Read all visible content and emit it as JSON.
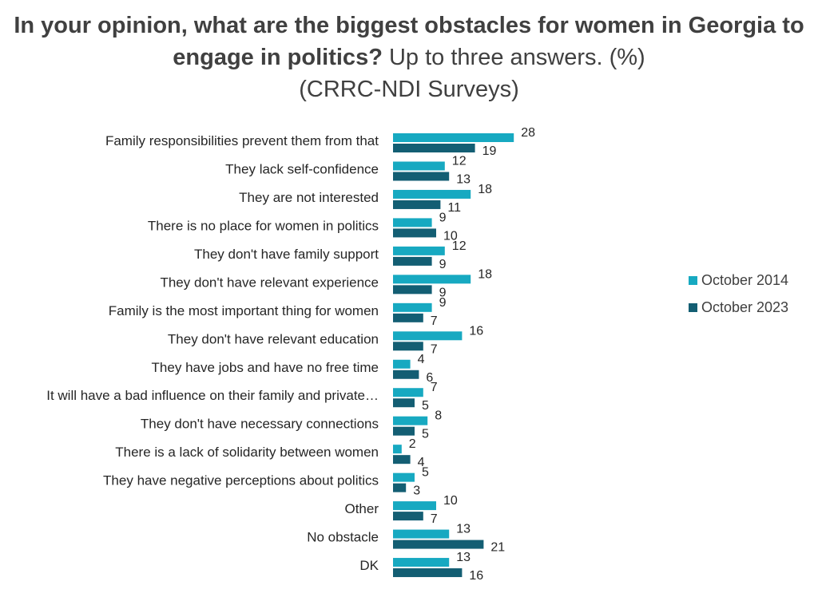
{
  "chart_data": {
    "type": "bar",
    "orientation": "horizontal",
    "title_bold": "In your opinion, what are the biggest obstacles for women in Georgia to engage in politics?",
    "title_normal": " Up to three answers. (%)",
    "subtitle": "(CRRC-NDI Surveys)",
    "categories": [
      "Family responsibilities prevent them from that",
      "They lack self-confidence",
      "They are not interested",
      "There is no place for women in politics",
      "They don't have family support",
      "They don't have relevant experience",
      "Family is the most important thing for women",
      "They don't have relevant education",
      "They have jobs and have no free time",
      "It will have a bad influence on their family and private…",
      "They don't have necessary connections",
      "There is a lack of solidarity between women",
      "They have negative perceptions about politics",
      "Other",
      "No obstacle",
      "DK"
    ],
    "series": [
      {
        "name": "October 2014",
        "color": "#17a9c1",
        "values": [
          28,
          12,
          18,
          9,
          12,
          18,
          9,
          16,
          4,
          7,
          8,
          2,
          5,
          10,
          13,
          13
        ]
      },
      {
        "name": "October 2023",
        "color": "#135e73",
        "values": [
          19,
          13,
          11,
          10,
          9,
          9,
          7,
          7,
          6,
          5,
          5,
          4,
          3,
          7,
          21,
          16
        ]
      }
    ],
    "legend_position": "right",
    "grid": false,
    "xlim": [
      0,
      30
    ]
  }
}
